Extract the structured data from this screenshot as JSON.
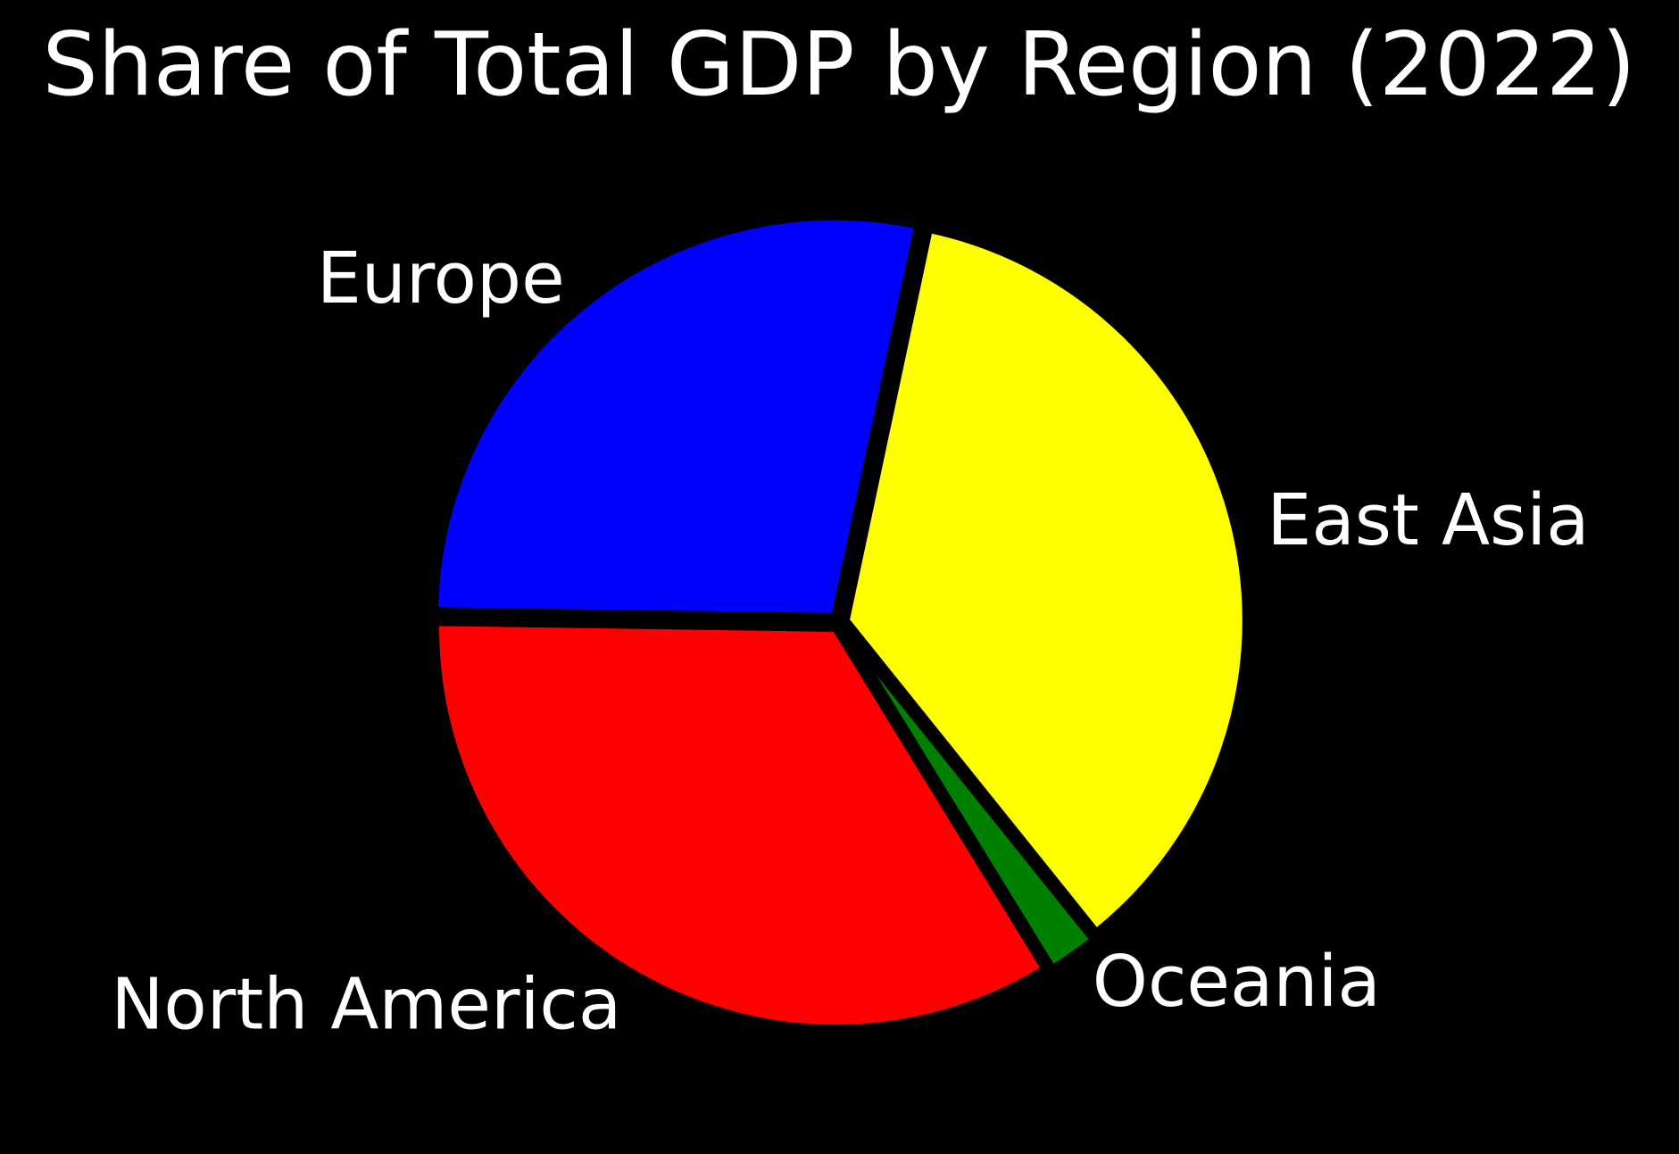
{
  "chart_data": {
    "type": "pie",
    "title": "Share of Total GDP by Region (2022)",
    "start_angle_deg": 78,
    "direction": "clockwise",
    "background": "#000000",
    "edge_color": "#000000",
    "label_color": "#ffffff",
    "slices": [
      {
        "label": "East Asia",
        "value": 35.9,
        "color": "#ffff00"
      },
      {
        "label": "Oceania",
        "value": 2.0,
        "color": "#008000"
      },
      {
        "label": "North America",
        "value": 34.0,
        "color": "#ff0000"
      },
      {
        "label": "Europe",
        "value": 28.1,
        "color": "#0000ff"
      }
    ]
  }
}
